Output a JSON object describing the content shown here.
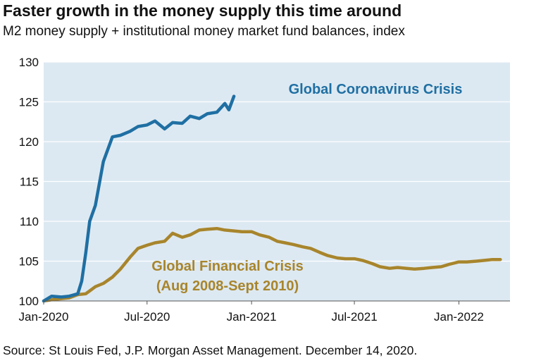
{
  "title": "Faster growth in the money supply this time around",
  "subtitle": "M2 money supply + institutional money market fund balances, index",
  "source": "Source: St Louis Fed, J.P. Morgan Asset Management. December 14, 2020.",
  "chart_data": {
    "type": "line",
    "grid": true,
    "plot_background": "#dde9f2",
    "xlim": [
      "2020-01",
      "2022-04"
    ],
    "x_ticks": [
      "Jan-2020",
      "Jul-2020",
      "Jan-2021",
      "Jul-2021",
      "Jan-2022"
    ],
    "x_tick_values": [
      "2020-01",
      "2020-07",
      "2021-01",
      "2021-07",
      "2022-01"
    ],
    "ylim": [
      100,
      130
    ],
    "y_ticks": [
      100,
      105,
      110,
      115,
      120,
      125,
      130
    ],
    "series": [
      {
        "name": "Global Coronavirus Crisis",
        "color": "#1f6fa3",
        "x": [
          "2020-01-01",
          "2020-01-15",
          "2020-02-01",
          "2020-02-15",
          "2020-03-01",
          "2020-03-08",
          "2020-03-15",
          "2020-03-22",
          "2020-04-01",
          "2020-04-15",
          "2020-05-01",
          "2020-05-15",
          "2020-06-01",
          "2020-06-15",
          "2020-07-01",
          "2020-07-15",
          "2020-08-01",
          "2020-08-15",
          "2020-09-01",
          "2020-09-15",
          "2020-10-01",
          "2020-10-15",
          "2020-11-01",
          "2020-11-15",
          "2020-11-22",
          "2020-12-01"
        ],
        "y": [
          100.0,
          100.6,
          100.5,
          100.6,
          100.9,
          102.5,
          106.0,
          110.0,
          112.0,
          117.5,
          120.6,
          120.8,
          121.3,
          121.9,
          122.1,
          122.6,
          121.6,
          122.4,
          122.3,
          123.2,
          122.9,
          123.5,
          123.7,
          124.8,
          124.0,
          125.7
        ]
      },
      {
        "name": "Global Financial Crisis",
        "color": "#a8852c",
        "x": [
          "2020-01-01",
          "2020-01-20",
          "2020-02-15",
          "2020-03-01",
          "2020-03-15",
          "2020-04-01",
          "2020-04-15",
          "2020-05-01",
          "2020-05-15",
          "2020-06-01",
          "2020-06-15",
          "2020-07-01",
          "2020-07-15",
          "2020-08-01",
          "2020-08-15",
          "2020-09-01",
          "2020-09-15",
          "2020-10-01",
          "2020-10-15",
          "2020-11-01",
          "2020-11-15",
          "2020-12-01",
          "2020-12-15",
          "2021-01-01",
          "2021-01-15",
          "2021-02-01",
          "2021-02-15",
          "2021-03-01",
          "2021-03-15",
          "2021-04-01",
          "2021-04-15",
          "2021-05-01",
          "2021-05-15",
          "2021-06-01",
          "2021-06-15",
          "2021-07-01",
          "2021-07-15",
          "2021-08-01",
          "2021-08-15",
          "2021-09-01",
          "2021-09-15",
          "2021-10-01",
          "2021-10-15",
          "2021-11-01",
          "2021-11-15",
          "2021-12-01",
          "2021-12-15",
          "2022-01-01",
          "2022-01-15",
          "2022-02-01",
          "2022-02-15",
          "2022-03-01",
          "2022-03-15"
        ],
        "y": [
          100.0,
          100.2,
          100.4,
          100.8,
          100.9,
          101.8,
          102.2,
          103.0,
          104.0,
          105.5,
          106.6,
          107.0,
          107.3,
          107.5,
          108.5,
          108.0,
          108.3,
          108.9,
          109.0,
          109.1,
          108.9,
          108.8,
          108.7,
          108.7,
          108.3,
          108.0,
          107.5,
          107.3,
          107.1,
          106.8,
          106.6,
          106.1,
          105.7,
          105.4,
          105.3,
          105.3,
          105.1,
          104.7,
          104.3,
          104.1,
          104.2,
          104.1,
          104.0,
          104.1,
          104.2,
          104.3,
          104.6,
          104.9,
          104.9,
          105.0,
          105.1,
          105.2,
          105.2
        ]
      }
    ],
    "annotations": [
      {
        "series": 0,
        "lines": [
          "Global Coronavirus Crisis"
        ],
        "color": "#1f6fa3"
      },
      {
        "series": 1,
        "lines": [
          "Global Financial Crisis",
          "(Aug 2008-Sept 2010)"
        ],
        "color": "#a8852c"
      }
    ]
  }
}
